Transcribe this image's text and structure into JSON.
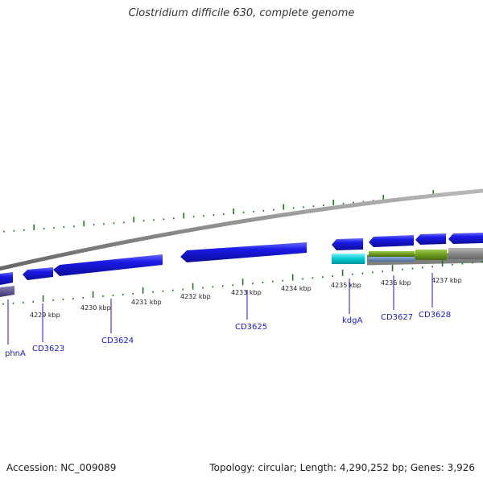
{
  "title": "Clostridium difficile 630, complete genome",
  "footer": {
    "accession": "Accession: NC_009089",
    "summary": "Topology: circular; Length: 4,290,252 bp; Genes: 3,926"
  },
  "colors": {
    "cds_blue": "#1a1ae6",
    "gene_cyan": "#00c8d2",
    "gene_olive": "#6b9a1e",
    "gene_steel": "#5a7fb0",
    "backbone": "#8a8a8a",
    "tick_green": "#1e7a1e",
    "label_blue": "#1a1acc"
  },
  "ticks": [
    {
      "label": "4229 kbp"
    },
    {
      "label": "4230 kbp"
    },
    {
      "label": "4231 kbp"
    },
    {
      "label": "4232 kbp"
    },
    {
      "label": "4233 kbp"
    },
    {
      "label": "4234 kbp"
    },
    {
      "label": "4235 kbp"
    },
    {
      "label": "4236 kbp"
    },
    {
      "label": "4237 kbp"
    }
  ],
  "gene_labels": [
    {
      "label": "phnA"
    },
    {
      "label": "CD3623"
    },
    {
      "label": "CD3624"
    },
    {
      "label": "CD3625"
    },
    {
      "label": "kdgA"
    },
    {
      "label": "CD3627"
    },
    {
      "label": "CD3628"
    }
  ]
}
